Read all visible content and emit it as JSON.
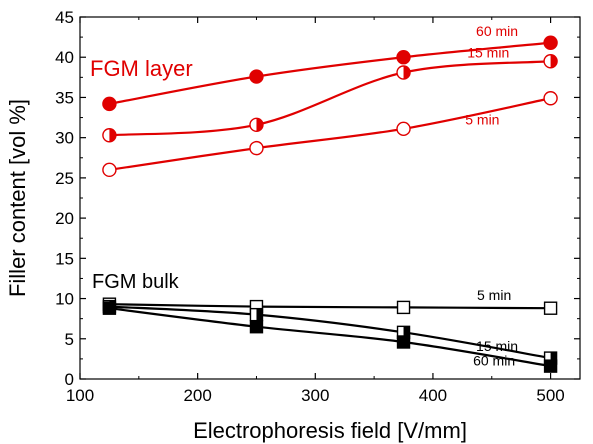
{
  "chart_data": {
    "type": "line",
    "xlabel": "Electrophoresis field [V/mm]",
    "ylabel": "Filler content [vol %]",
    "xlim": [
      100,
      525
    ],
    "ylim": [
      0,
      45
    ],
    "xticks": [
      100,
      200,
      300,
      400,
      500
    ],
    "yticks": [
      0,
      5,
      10,
      15,
      20,
      25,
      30,
      35,
      40,
      45
    ],
    "grid": false,
    "x": [
      125,
      250,
      375,
      500
    ],
    "groups": [
      {
        "label": "FGM layer",
        "color": "#e00000",
        "marker_shape": "circle",
        "series": [
          {
            "name": "60 min",
            "marker": "filled",
            "values": [
              34.2,
              37.6,
              40.0,
              41.8
            ]
          },
          {
            "name": "15 min",
            "marker": "half",
            "values": [
              30.3,
              31.6,
              38.1,
              39.5
            ]
          },
          {
            "name": "5 min",
            "marker": "open",
            "values": [
              26.0,
              28.7,
              31.1,
              34.9
            ]
          }
        ]
      },
      {
        "label": "FGM bulk",
        "color": "#000000",
        "marker_shape": "square",
        "series": [
          {
            "name": "5 min",
            "marker": "open",
            "values": [
              9.3,
              9.0,
              8.9,
              8.8
            ]
          },
          {
            "name": "15 min",
            "marker": "half",
            "values": [
              9.0,
              8.0,
              5.8,
              2.6
            ]
          },
          {
            "name": "60 min",
            "marker": "filled",
            "values": [
              8.8,
              6.5,
              4.6,
              1.6
            ]
          }
        ]
      }
    ]
  }
}
